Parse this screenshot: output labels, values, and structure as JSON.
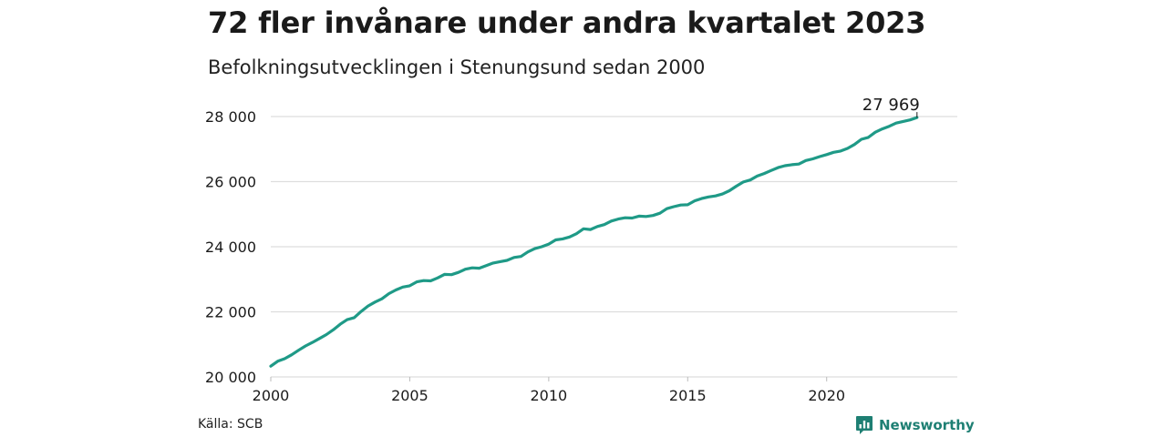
{
  "header": {
    "title": "72 fler invånare under andra kvartalet 2023",
    "subtitle": "Befolkningsutvecklingen i Stenungsund sedan 2000"
  },
  "footer": {
    "source": "Källa: SCB",
    "brand": "Newsworthy",
    "brand_icon": "newsworthy-logo-icon"
  },
  "colors": {
    "line": "#1f9a87",
    "grid": "#dddddd",
    "brand": "#1e7f73"
  },
  "chart_data": {
    "type": "line",
    "title": "72 fler invånare under andra kvartalet 2023",
    "subtitle": "Befolkningsutvecklingen i Stenungsund sedan 2000",
    "xlabel": "",
    "ylabel": "",
    "xlim": [
      2000,
      2024.7
    ],
    "ylim": [
      20000,
      28000
    ],
    "x_ticks": [
      2000,
      2005,
      2010,
      2015,
      2020
    ],
    "x_tick_labels": [
      "2000",
      "2005",
      "2010",
      "2015",
      "2020"
    ],
    "y_ticks": [
      20000,
      22000,
      24000,
      26000,
      28000
    ],
    "y_tick_labels": [
      "20 000",
      "22 000",
      "24 000",
      "26 000",
      "28 000"
    ],
    "grid": "horizontal",
    "end_label": "27 969",
    "series": [
      {
        "x": [
          2000.0,
          2000.25,
          2000.5,
          2000.75,
          2001.0,
          2001.25,
          2001.5,
          2001.75,
          2002.0,
          2002.25,
          2002.5,
          2002.75,
          2003.0,
          2003.25,
          2003.5,
          2003.75,
          2004.0,
          2004.25,
          2004.5,
          2004.75,
          2005.0,
          2005.25,
          2005.5,
          2005.75,
          2006.0,
          2006.25,
          2006.5,
          2006.75,
          2007.0,
          2007.25,
          2007.5,
          2007.75,
          2008.0,
          2008.25,
          2008.5,
          2008.75,
          2009.0,
          2009.25,
          2009.5,
          2009.75,
          2010.0,
          2010.25,
          2010.5,
          2010.75,
          2011.0,
          2011.25,
          2011.5,
          2011.75,
          2012.0,
          2012.25,
          2012.5,
          2012.75,
          2013.0,
          2013.25,
          2013.5,
          2013.75,
          2014.0,
          2014.25,
          2014.5,
          2014.75,
          2015.0,
          2015.25,
          2015.5,
          2015.75,
          2016.0,
          2016.25,
          2016.5,
          2016.75,
          2017.0,
          2017.25,
          2017.5,
          2017.75,
          2018.0,
          2018.25,
          2018.5,
          2018.75,
          2019.0,
          2019.25,
          2019.5,
          2019.75,
          2020.0,
          2020.25,
          2020.5,
          2020.75,
          2021.0,
          2021.25,
          2021.5,
          2021.75,
          2022.0,
          2022.25,
          2022.5,
          2022.75,
          2023.0,
          2023.25
        ],
        "values": [
          20330,
          20480,
          20560,
          20680,
          20820,
          20950,
          21060,
          21180,
          21300,
          21450,
          21620,
          21760,
          21820,
          22010,
          22180,
          22300,
          22400,
          22560,
          22670,
          22760,
          22800,
          22920,
          22960,
          22950,
          23040,
          23150,
          23140,
          23210,
          23310,
          23350,
          23340,
          23420,
          23500,
          23540,
          23580,
          23670,
          23700,
          23840,
          23940,
          24000,
          24080,
          24210,
          24240,
          24300,
          24400,
          24550,
          24530,
          24620,
          24680,
          24790,
          24850,
          24890,
          24880,
          24940,
          24930,
          24960,
          25030,
          25170,
          25230,
          25280,
          25290,
          25410,
          25480,
          25530,
          25560,
          25620,
          25720,
          25860,
          25990,
          26050,
          26170,
          26250,
          26340,
          26430,
          26490,
          26520,
          26540,
          26650,
          26700,
          26770,
          26830,
          26900,
          26940,
          27020,
          27140,
          27300,
          27360,
          27520,
          27620,
          27700,
          27800,
          27850,
          27897,
          27969
        ]
      }
    ]
  }
}
